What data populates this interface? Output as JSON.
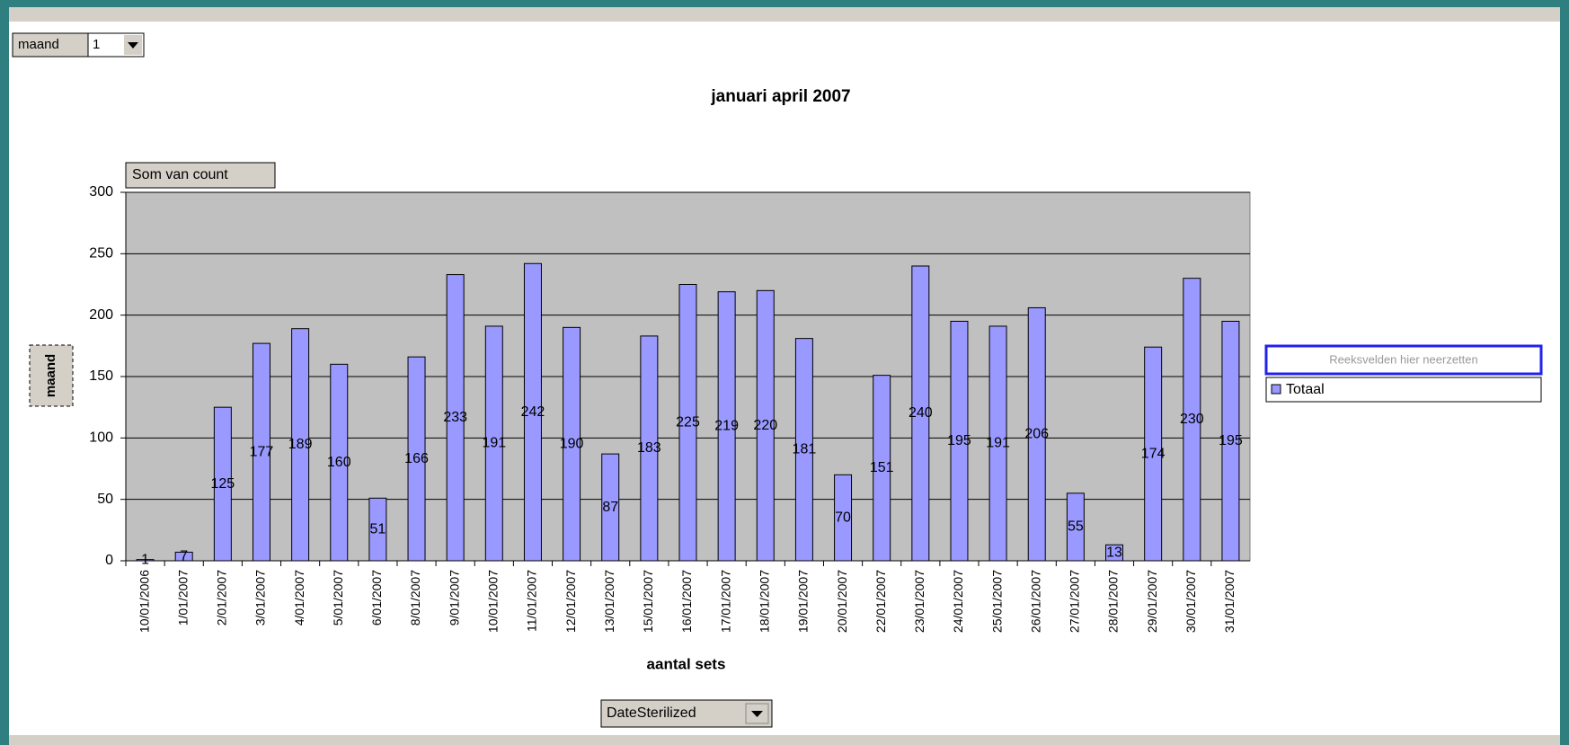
{
  "page_filter": {
    "label": "maand",
    "value": "1"
  },
  "data_field": "Som van count",
  "y_field": "maand",
  "series_drop_zone": "Reeksvelden hier neerzetten",
  "category_field": "DateSterilized",
  "chart_data": {
    "type": "bar",
    "title": "januari april 2007",
    "x_label": "aantal sets",
    "categories": [
      "10/01/2006",
      "1/01/2007",
      "2/01/2007",
      "3/01/2007",
      "4/01/2007",
      "5/01/2007",
      "6/01/2007",
      "8/01/2007",
      "9/01/2007",
      "10/01/2007",
      "11/01/2007",
      "12/01/2007",
      "13/01/2007",
      "15/01/2007",
      "16/01/2007",
      "17/01/2007",
      "18/01/2007",
      "19/01/2007",
      "20/01/2007",
      "22/01/2007",
      "23/01/2007",
      "24/01/2007",
      "25/01/2007",
      "26/01/2007",
      "27/01/2007",
      "28/01/2007",
      "29/01/2007",
      "30/01/2007",
      "31/01/2007"
    ],
    "series": [
      {
        "name": "Totaal",
        "color": "#9999ff",
        "values": [
          1,
          7,
          125,
          177,
          189,
          160,
          51,
          166,
          233,
          191,
          242,
          190,
          87,
          183,
          225,
          219,
          220,
          181,
          70,
          151,
          240,
          195,
          191,
          206,
          55,
          13,
          174,
          230,
          195
        ]
      }
    ],
    "ylim": [
      0,
      300
    ],
    "yticks": [
      0,
      50,
      100,
      150,
      200,
      250,
      300
    ],
    "grid": true
  }
}
